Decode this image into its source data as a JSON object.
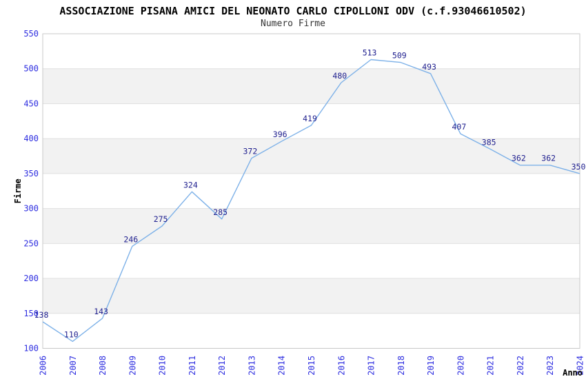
{
  "chart_data": {
    "type": "line",
    "title": "ASSOCIAZIONE PISANA AMICI DEL NEONATO CARLO CIPOLLONI ODV (c.f.93046610502)",
    "subtitle": "Numero Firme",
    "xlabel": "Anno",
    "ylabel": "Firme",
    "x": [
      "2006",
      "2007",
      "2008",
      "2009",
      "2010",
      "2011",
      "2012",
      "2013",
      "2014",
      "2015",
      "2016",
      "2017",
      "2018",
      "2019",
      "2020",
      "2021",
      "2022",
      "2023",
      "2024"
    ],
    "values": [
      138,
      110,
      143,
      246,
      275,
      324,
      285,
      372,
      396,
      419,
      480,
      513,
      509,
      493,
      407,
      385,
      362,
      362,
      350
    ],
    "point_labels": [
      "138",
      "110",
      "143",
      "246",
      "275",
      "324",
      "285",
      "372",
      "396",
      "419",
      "480",
      "513",
      "509",
      "493",
      "407",
      "385",
      "362",
      "362",
      "350"
    ],
    "ylim": [
      100,
      550
    ],
    "ytick_step": 50,
    "yticks": [
      100,
      150,
      200,
      250,
      300,
      350,
      400,
      450,
      500,
      550
    ],
    "legend_position": "none",
    "grid": "horizontal gridlines with alternating shaded bands",
    "colors": {
      "line": "#7db1e8",
      "tick_labels": "#2e2ee0",
      "point_labels": "#20208f",
      "band": "#f2f2f2",
      "gridline": "#e0e0e0",
      "plot_border": "#c8c8c8",
      "title": "#000000",
      "axis_labels": "#000000",
      "background": "#ffffff"
    }
  }
}
